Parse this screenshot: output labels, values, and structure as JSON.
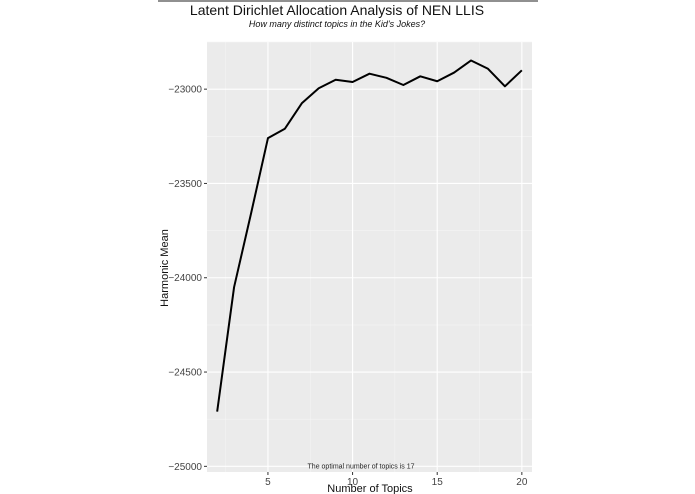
{
  "chart_data": {
    "type": "line",
    "title": "Latent Dirichlet Allocation Analysis of NEN LLIS",
    "subtitle": "How many distinct topics in the Kid's Jokes?",
    "xlabel": "Number of Topics",
    "ylabel": "Harmonic Mean",
    "x": [
      2,
      3,
      4,
      5,
      6,
      7,
      8,
      9,
      10,
      11,
      12,
      13,
      14,
      15,
      16,
      17,
      18,
      19,
      20
    ],
    "series": [
      {
        "values": [
          -24710,
          -24050,
          -23660,
          -23260,
          -23210,
          -23075,
          -22995,
          -22950,
          -22962,
          -22918,
          -22940,
          -22978,
          -22932,
          -22958,
          -22912,
          -22848,
          -22892,
          -22985,
          -22900
        ]
      }
    ],
    "xlim": [
      1.4,
      20.6
    ],
    "ylim": [
      -25030,
      -22750
    ],
    "x_ticks": [
      5,
      10,
      15,
      20
    ],
    "x_tick_labels": [
      "5",
      "10",
      "15",
      "20"
    ],
    "y_ticks": [
      -25000,
      -24500,
      -24000,
      -23500,
      -23000
    ],
    "y_tick_labels": [
      "−25000",
      "−24500",
      "−24000",
      "−23500",
      "−23000"
    ],
    "annotation": {
      "text": "The optimal number of topics is 17",
      "x": 10.5,
      "y": -25000
    },
    "grid": true,
    "panel_color": "#ebebeb",
    "line_color": "#000000"
  }
}
